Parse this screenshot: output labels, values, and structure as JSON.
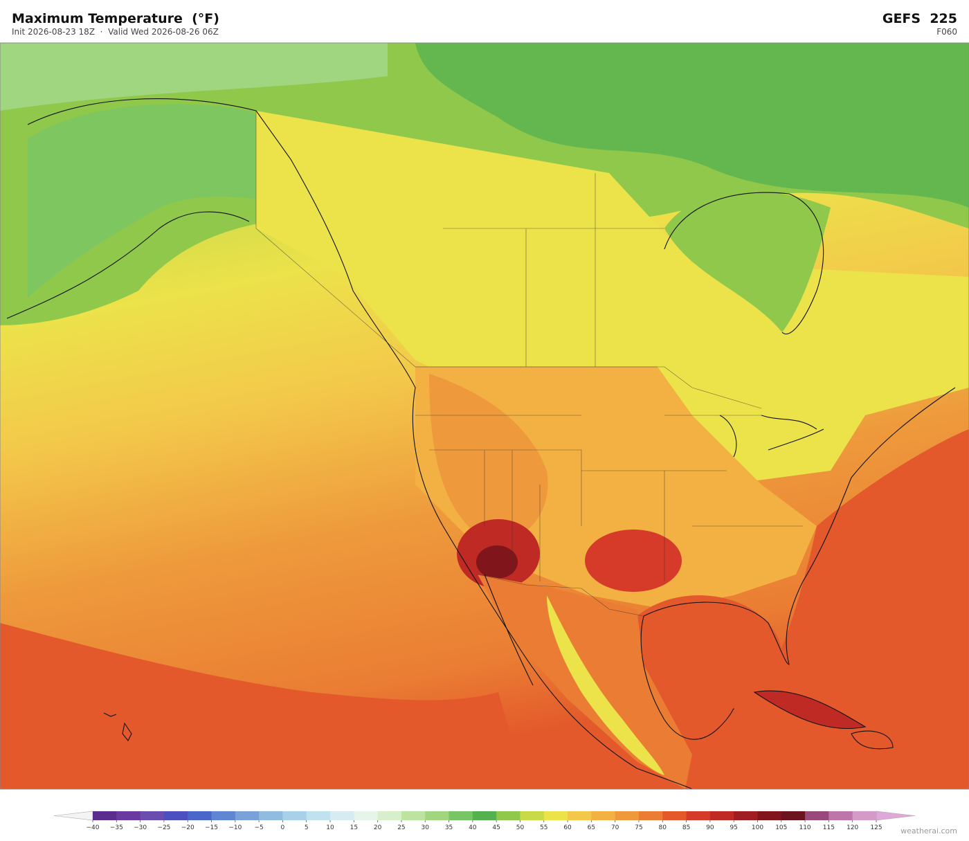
{
  "header": {
    "title": "Maximum Temperature  (°F)",
    "subtitle": "Init 2026-08-23 18Z  ·  Valid Wed 2026-08-26 06Z",
    "model": "GEFS  225",
    "forecast_hour": "F060"
  },
  "colorbar": {
    "ticks": [
      {
        "value": -40,
        "label": "−40"
      },
      {
        "value": -35,
        "label": "−35"
      },
      {
        "value": -30,
        "label": "−30"
      },
      {
        "value": -25,
        "label": "−25"
      },
      {
        "value": -20,
        "label": "−20"
      },
      {
        "value": -15,
        "label": "−15"
      },
      {
        "value": -10,
        "label": "−10"
      },
      {
        "value": -5,
        "label": "−5"
      },
      0,
      5,
      10,
      15,
      20,
      25,
      30,
      35,
      40,
      45,
      50,
      55,
      60,
      65,
      70,
      75,
      80,
      85,
      90,
      95,
      100,
      105,
      110,
      115,
      120,
      125
    ],
    "colors": [
      "#5b2d8e",
      "#6a3aa0",
      "#6b4db0",
      "#4b4fc0",
      "#4a66c8",
      "#5f86d0",
      "#7aa2d8",
      "#90bce0",
      "#a8d0e8",
      "#c0e2ef",
      "#d6ecf2",
      "#e6f4ea",
      "#d8efcc",
      "#bde3a0",
      "#a0d67f",
      "#78c565",
      "#55b150",
      "#8fc84a",
      "#c8d94a",
      "#ece24a",
      "#f3c84a",
      "#f2b142",
      "#ee9a3c",
      "#ea7d33",
      "#e3592b",
      "#d63a28",
      "#bf2a25",
      "#a01e22",
      "#80161c",
      "#6b1420",
      "#9a4a7a",
      "#be75aa",
      "#d49ac8"
    ],
    "extend_low_color": "#f4f4f4",
    "extend_high_color": "#e0a8d8"
  },
  "footer": {
    "credit": "weatherai.com"
  }
}
